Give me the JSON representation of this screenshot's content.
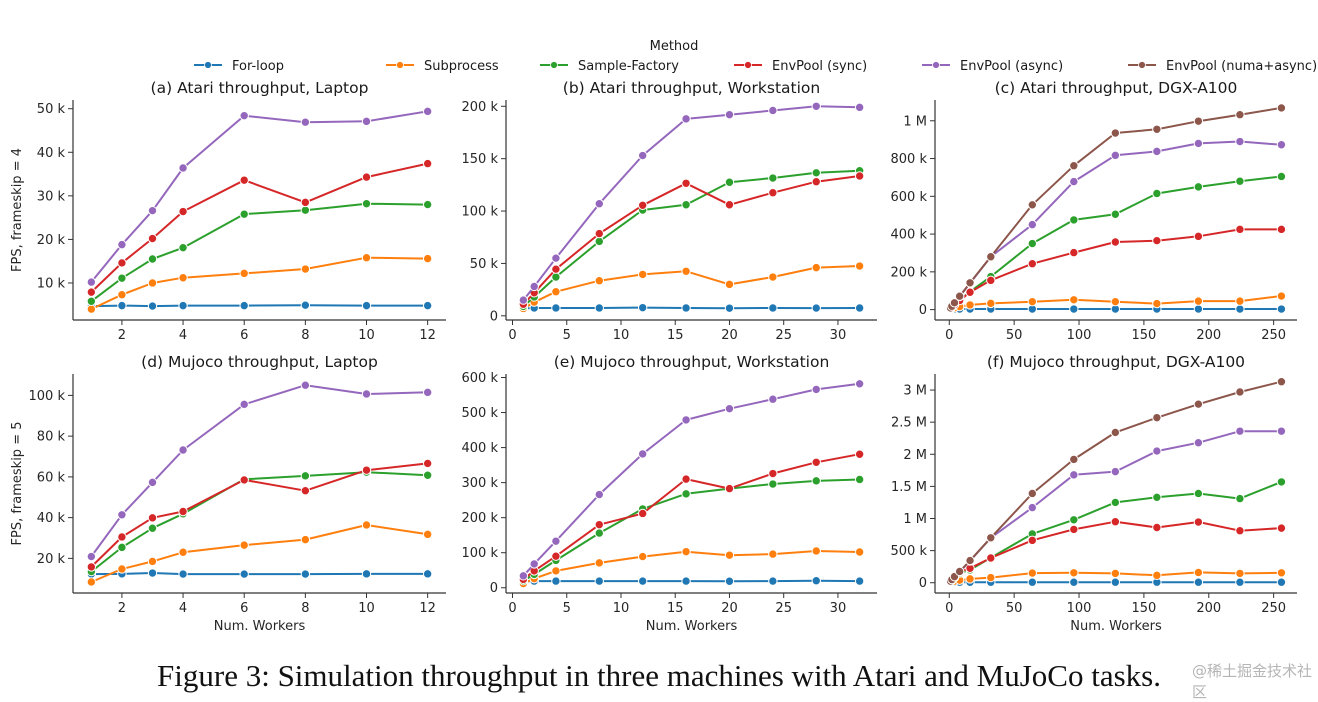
{
  "legend": {
    "title": "Method",
    "entries": [
      {
        "name": "For-loop",
        "color": "#1f77b4"
      },
      {
        "name": "Subprocess",
        "color": "#ff7f0e"
      },
      {
        "name": "Sample-Factory",
        "color": "#2ca02c"
      },
      {
        "name": "EnvPool (sync)",
        "color": "#d62728"
      },
      {
        "name": "EnvPool (async)",
        "color": "#9467bd"
      },
      {
        "name": "EnvPool (numa+async)",
        "color": "#8c564b"
      }
    ]
  },
  "caption": "Figure 3: Simulation throughput in three machines with Atari and MuJoCo tasks.",
  "watermark": "@稀土掘金技术社区",
  "chart_data": [
    {
      "type": "line",
      "title": "(a) Atari throughput, Laptop",
      "xlabel": "",
      "ylabel": "FPS, frameskip = 4",
      "xlim": [
        0.4,
        12.6
      ],
      "ylim": [
        1500,
        52000
      ],
      "xticks": [
        2,
        4,
        6,
        8,
        10,
        12
      ],
      "xtick_labels": [
        "2",
        "4",
        "6",
        "8",
        "10",
        "12"
      ],
      "yticks": [
        10000,
        20000,
        30000,
        40000,
        50000
      ],
      "ytick_labels": [
        "10 k",
        "20 k",
        "30 k",
        "40 k",
        "50 k"
      ],
      "x": [
        1,
        2,
        3,
        4,
        6,
        8,
        10,
        12
      ],
      "series": [
        {
          "name": "For-loop",
          "values": [
            4700,
            4800,
            4700,
            4800,
            4800,
            4900,
            4800,
            4800
          ]
        },
        {
          "name": "Subprocess",
          "values": [
            4000,
            7300,
            10000,
            11200,
            12200,
            13200,
            15800,
            15600
          ]
        },
        {
          "name": "Sample-Factory",
          "values": [
            5800,
            11100,
            15500,
            18100,
            25800,
            26700,
            28200,
            28000
          ]
        },
        {
          "name": "EnvPool (sync)",
          "values": [
            7900,
            14600,
            20200,
            26400,
            33600,
            28500,
            34300,
            37400
          ]
        },
        {
          "name": "EnvPool (async)",
          "values": [
            10200,
            18800,
            26600,
            36400,
            48400,
            46900,
            47100,
            49400
          ]
        }
      ]
    },
    {
      "type": "line",
      "title": "(b) Atari throughput, Workstation",
      "xlabel": "",
      "ylabel": "",
      "xlim": [
        -0.6,
        33.6
      ],
      "ylim": [
        -4000,
        206000
      ],
      "xticks": [
        0,
        5,
        10,
        15,
        20,
        25,
        30
      ],
      "xtick_labels": [
        "0",
        "5",
        "10",
        "15",
        "20",
        "25",
        "30"
      ],
      "yticks": [
        0,
        50000,
        100000,
        150000,
        200000
      ],
      "ytick_labels": [
        "0",
        "50 k",
        "100 k",
        "150 k",
        "200 k"
      ],
      "x": [
        1,
        2,
        4,
        8,
        12,
        16,
        20,
        24,
        28,
        32
      ],
      "series": [
        {
          "name": "For-loop",
          "values": [
            7000,
            7500,
            7500,
            7500,
            7800,
            7500,
            7300,
            7500,
            7400,
            7500
          ]
        },
        {
          "name": "Subprocess",
          "values": [
            7000,
            13000,
            23000,
            33500,
            39500,
            42500,
            30000,
            37000,
            46000,
            47500
          ]
        },
        {
          "name": "Sample-Factory",
          "values": [
            9000,
            18000,
            37000,
            71000,
            101000,
            106000,
            127500,
            131500,
            136500,
            138500
          ]
        },
        {
          "name": "EnvPool (sync)",
          "values": [
            11000,
            22000,
            44500,
            78500,
            105500,
            126500,
            106000,
            117500,
            128000,
            133500
          ]
        },
        {
          "name": "EnvPool (async)",
          "values": [
            15000,
            28000,
            55000,
            107000,
            153000,
            188000,
            192000,
            196000,
            200000,
            199000
          ]
        }
      ]
    },
    {
      "type": "line",
      "title": "(c) Atari throughput, DGX-A100",
      "xlabel": "",
      "ylabel": "",
      "xlim": [
        -11,
        268
      ],
      "ylim": [
        -55000,
        1110000
      ],
      "xticks": [
        0,
        50,
        100,
        150,
        200,
        250
      ],
      "xtick_labels": [
        "0",
        "50",
        "100",
        "150",
        "200",
        "250"
      ],
      "yticks": [
        0,
        200000,
        400000,
        600000,
        800000,
        1000000
      ],
      "ytick_labels": [
        "0",
        "200 k",
        "400 k",
        "600 k",
        "800 k",
        "1 M"
      ],
      "x": [
        1,
        2,
        4,
        8,
        16,
        32,
        64,
        96,
        128,
        160,
        192,
        224,
        256
      ],
      "series": [
        {
          "name": "For-loop",
          "values": [
            3000,
            3000,
            3000,
            3000,
            3000,
            3000,
            3000,
            3000,
            3000,
            3000,
            3000,
            3000,
            3000
          ]
        },
        {
          "name": "Subprocess",
          "values": [
            4000,
            6000,
            10000,
            16000,
            25000,
            33000,
            42000,
            52000,
            42000,
            32000,
            45000,
            45000,
            72000
          ]
        },
        {
          "name": "Sample-Factory",
          "values": [
            7000,
            14000,
            28000,
            50000,
            95000,
            175000,
            350000,
            475000,
            505000,
            615000,
            650000,
            680000,
            705000
          ]
        },
        {
          "name": "EnvPool (sync)",
          "values": [
            6000,
            12000,
            25000,
            48000,
            92000,
            155000,
            243000,
            302000,
            358000,
            365000,
            388000,
            425000,
            425000
          ]
        },
        {
          "name": "EnvPool (async)",
          "values": [
            9000,
            18000,
            36000,
            70000,
            140000,
            280000,
            450000,
            678000,
            817000,
            838000,
            880000,
            890000,
            873000
          ]
        },
        {
          "name": "EnvPool (numa+async)",
          "values": [
            9000,
            18000,
            36000,
            71000,
            142000,
            280000,
            555000,
            762000,
            935000,
            955000,
            998000,
            1032000,
            1068000
          ]
        }
      ]
    },
    {
      "type": "line",
      "title": "(d) Mujoco throughput, Laptop",
      "xlabel": "Num. Workers",
      "ylabel": "FPS, frameskip = 5",
      "xlim": [
        0.4,
        12.6
      ],
      "ylim": [
        3000,
        110500
      ],
      "xticks": [
        2,
        4,
        6,
        8,
        10,
        12
      ],
      "xtick_labels": [
        "2",
        "4",
        "6",
        "8",
        "10",
        "12"
      ],
      "yticks": [
        20000,
        40000,
        60000,
        80000,
        100000
      ],
      "ytick_labels": [
        "20 k",
        "40 k",
        "60 k",
        "80 k",
        "100 k"
      ],
      "x": [
        1,
        2,
        3,
        4,
        6,
        8,
        10,
        12
      ],
      "series": [
        {
          "name": "For-loop",
          "values": [
            12300,
            12400,
            12800,
            12300,
            12300,
            12300,
            12400,
            12400
          ]
        },
        {
          "name": "Subprocess",
          "values": [
            8400,
            14800,
            18500,
            23000,
            26500,
            29200,
            36400,
            31800
          ]
        },
        {
          "name": "Sample-Factory",
          "values": [
            13500,
            25400,
            34800,
            41900,
            58800,
            60500,
            62300,
            60800
          ]
        },
        {
          "name": "EnvPool (sync)",
          "values": [
            15800,
            30500,
            39900,
            43000,
            58500,
            53200,
            63300,
            66600
          ]
        },
        {
          "name": "EnvPool (async)",
          "values": [
            20900,
            41400,
            57300,
            73200,
            95600,
            105000,
            100700,
            101500
          ]
        }
      ]
    },
    {
      "type": "line",
      "title": "(e) Mujoco throughput, Workstation",
      "xlabel": "Num. Workers",
      "ylabel": "",
      "xlim": [
        -0.6,
        33.6
      ],
      "ylim": [
        -15000,
        610000
      ],
      "xticks": [
        0,
        5,
        10,
        15,
        20,
        25,
        30
      ],
      "xtick_labels": [
        "0",
        "5",
        "10",
        "15",
        "20",
        "25",
        "30"
      ],
      "yticks": [
        0,
        100000,
        200000,
        300000,
        400000,
        500000,
        600000
      ],
      "ytick_labels": [
        "0",
        "100 k",
        "200 k",
        "300 k",
        "400 k",
        "500 k",
        "600 k"
      ],
      "x": [
        1,
        2,
        4,
        8,
        12,
        16,
        20,
        24,
        28,
        32
      ],
      "series": [
        {
          "name": "For-loop",
          "values": [
            18000,
            19000,
            19000,
            19000,
            19000,
            19000,
            18500,
            19000,
            20000,
            19000
          ]
        },
        {
          "name": "Subprocess",
          "values": [
            12000,
            26000,
            48000,
            71000,
            89000,
            103000,
            93000,
            96000,
            105000,
            102000
          ]
        },
        {
          "name": "Sample-Factory",
          "values": [
            20000,
            38000,
            78000,
            156000,
            225000,
            268000,
            283000,
            296000,
            305000,
            309000
          ]
        },
        {
          "name": "EnvPool (sync)",
          "values": [
            24000,
            48000,
            90000,
            180000,
            212000,
            310000,
            283000,
            326000,
            358000,
            381000
          ]
        },
        {
          "name": "EnvPool (async)",
          "values": [
            34000,
            68000,
            133000,
            266000,
            382000,
            479000,
            511000,
            538000,
            566000,
            582000
          ]
        }
      ]
    },
    {
      "type": "line",
      "title": "(f) Mujoco throughput, DGX-A100",
      "xlabel": "Num. Workers",
      "ylabel": "",
      "xlim": [
        -11,
        268
      ],
      "ylim": [
        -160000,
        3250000
      ],
      "xticks": [
        0,
        50,
        100,
        150,
        200,
        250
      ],
      "xtick_labels": [
        "0",
        "50",
        "100",
        "150",
        "200",
        "250"
      ],
      "yticks": [
        0,
        500000,
        1000000,
        1500000,
        2000000,
        2500000,
        3000000
      ],
      "ytick_labels": [
        "0",
        "500 k",
        "1 M",
        "1.5 M",
        "2 M",
        "2.5 M",
        "3 M"
      ],
      "x": [
        1,
        2,
        4,
        8,
        16,
        32,
        64,
        96,
        128,
        160,
        192,
        224,
        256
      ],
      "series": [
        {
          "name": "For-loop",
          "values": [
            8000,
            8000,
            8000,
            8000,
            8000,
            8000,
            8000,
            8000,
            8000,
            8000,
            8000,
            8000,
            8000
          ]
        },
        {
          "name": "Subprocess",
          "values": [
            8000,
            15000,
            25000,
            40000,
            60000,
            80000,
            150000,
            155000,
            145000,
            115000,
            160000,
            145000,
            155000
          ]
        },
        {
          "name": "Sample-Factory",
          "values": [
            20000,
            40000,
            80000,
            150000,
            200000,
            390000,
            760000,
            980000,
            1250000,
            1330000,
            1390000,
            1310000,
            1570000
          ]
        },
        {
          "name": "EnvPool (sync)",
          "values": [
            22000,
            44000,
            88000,
            170000,
            225000,
            385000,
            660000,
            830000,
            950000,
            860000,
            945000,
            810000,
            850000
          ]
        },
        {
          "name": "EnvPool (async)",
          "values": [
            25000,
            50000,
            95000,
            170000,
            340000,
            700000,
            1170000,
            1680000,
            1730000,
            2050000,
            2180000,
            2360000,
            2360000
          ]
        },
        {
          "name": "EnvPool (numa+async)",
          "values": [
            25000,
            50000,
            95000,
            175000,
            345000,
            700000,
            1390000,
            1920000,
            2340000,
            2570000,
            2780000,
            2970000,
            3130000
          ]
        }
      ]
    }
  ]
}
